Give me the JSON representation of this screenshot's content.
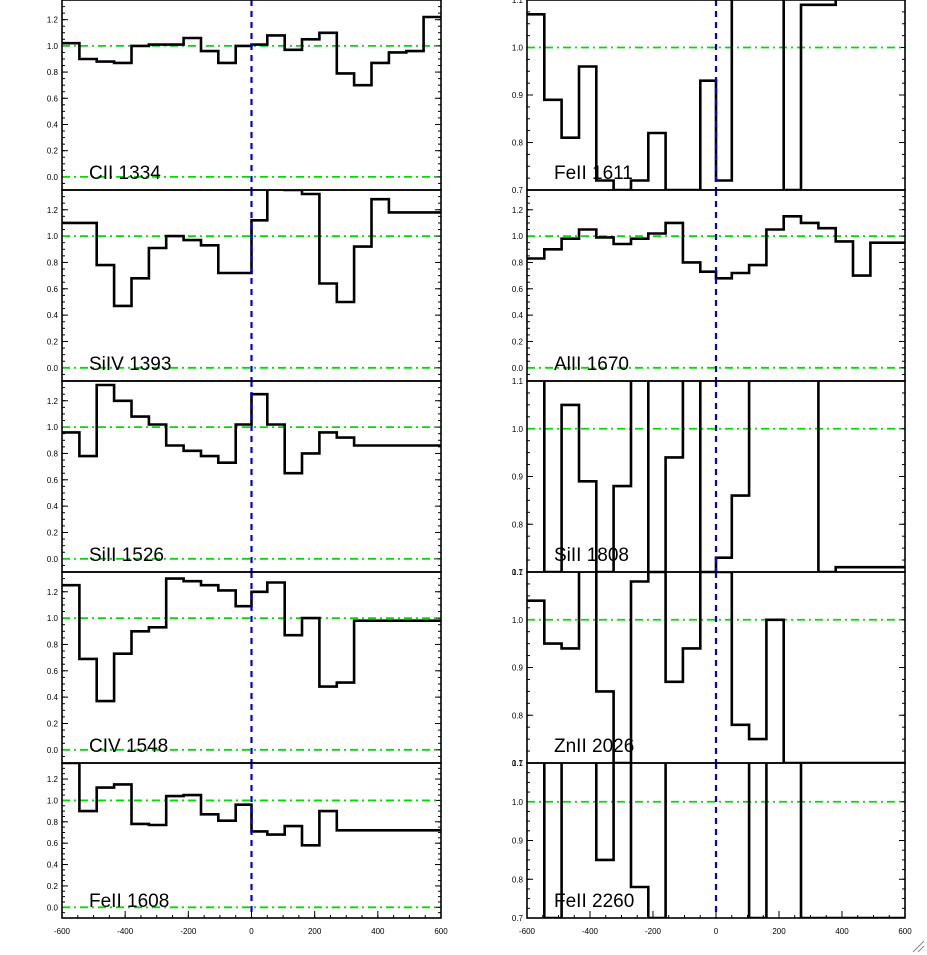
{
  "chart_data": {
    "type": "line",
    "layout": "2 columns x 5 rows, shared x axis per column",
    "xlim": [
      -600,
      600
    ],
    "xticks": [
      "-600",
      "-400",
      "-200",
      "0",
      "200",
      "400",
      "600"
    ],
    "bin_edges": [
      -600,
      -545,
      -490,
      -435,
      -380,
      -325,
      -270,
      -215,
      -160,
      -105,
      -50,
      0,
      50,
      105,
      160,
      215,
      270,
      325,
      380,
      435,
      490,
      545,
      600
    ],
    "reference_lines": {
      "continuum": 1.0,
      "zero_flux": 0.0,
      "velocity_zero": 0
    },
    "colors": {
      "histogram": "#000000",
      "reference": "#00dd00",
      "velocity_zero": "#0000dd"
    },
    "panels": [
      {
        "label": "CII 1334",
        "col": 0,
        "row": 0,
        "ylim": [
          -0.1,
          1.35
        ],
        "yticks": [
          "0.0",
          "0.2",
          "0.4",
          "0.6",
          "0.8",
          "1.0",
          "1.2"
        ],
        "values": [
          1.02,
          0.9,
          0.88,
          0.87,
          1.0,
          1.01,
          1.01,
          1.06,
          0.96,
          0.87,
          1.0,
          1.01,
          1.08,
          0.97,
          1.05,
          1.1,
          0.79,
          0.7,
          0.87,
          0.95,
          0.96,
          1.22
        ]
      },
      {
        "label": "FeII 1611",
        "col": 1,
        "row": 0,
        "ylim": [
          0.7,
          1.1
        ],
        "yticks": [
          "0.7",
          "0.8",
          "0.9",
          "1.0",
          "1.1"
        ],
        "values": [
          1.07,
          0.89,
          0.81,
          0.96,
          0.72,
          0.7,
          0.72,
          0.82,
          0.7,
          0.7,
          0.93,
          0.72,
          1.15,
          1.15,
          1.15,
          0.7,
          1.09,
          1.09,
          1.15,
          1.15,
          1.15,
          1.15
        ]
      },
      {
        "label": "SiIV 1393",
        "col": 0,
        "row": 1,
        "ylim": [
          -0.1,
          1.35
        ],
        "yticks": [
          "0.0",
          "0.2",
          "0.4",
          "0.6",
          "0.8",
          "1.0",
          "1.2"
        ],
        "values": [
          1.1,
          1.1,
          0.78,
          0.47,
          0.68,
          0.91,
          1.0,
          0.97,
          0.93,
          0.72,
          0.72,
          1.12,
          1.38,
          1.35,
          1.32,
          0.64,
          0.5,
          0.92,
          1.28,
          1.18,
          1.18,
          1.18
        ]
      },
      {
        "label": "AlII 1670",
        "col": 1,
        "row": 1,
        "ylim": [
          -0.1,
          1.35
        ],
        "yticks": [
          "0.0",
          "0.2",
          "0.4",
          "0.6",
          "0.8",
          "1.0",
          "1.2"
        ],
        "values": [
          0.83,
          0.9,
          0.98,
          1.05,
          0.99,
          0.94,
          0.98,
          1.02,
          1.1,
          0.8,
          0.73,
          0.68,
          0.72,
          0.78,
          1.05,
          1.15,
          1.1,
          1.06,
          0.96,
          0.7,
          0.95,
          0.95
        ]
      },
      {
        "label": "SiII 1526",
        "col": 0,
        "row": 2,
        "ylim": [
          -0.1,
          1.35
        ],
        "yticks": [
          "0.0",
          "0.2",
          "0.4",
          "0.6",
          "0.8",
          "1.0",
          "1.2"
        ],
        "values": [
          0.96,
          0.78,
          1.32,
          1.2,
          1.08,
          1.02,
          0.86,
          0.82,
          0.78,
          0.73,
          1.02,
          1.25,
          1.02,
          0.65,
          0.8,
          0.96,
          0.92,
          0.86,
          0.86,
          0.86,
          0.86,
          0.86
        ]
      },
      {
        "label": "SiII 1808",
        "col": 1,
        "row": 2,
        "ylim": [
          0.7,
          1.1
        ],
        "yticks": [
          "0.7",
          "0.8",
          "0.9",
          "1.0",
          "1.1"
        ],
        "values": [
          1.15,
          0.7,
          1.05,
          0.89,
          0.7,
          0.88,
          1.15,
          0.7,
          0.94,
          1.15,
          0.7,
          0.73,
          0.86,
          1.15,
          1.15,
          1.15,
          1.15,
          0.7,
          0.71,
          0.71,
          0.71,
          0.71
        ]
      },
      {
        "label": "CIV 1548",
        "col": 0,
        "row": 3,
        "ylim": [
          -0.1,
          1.35
        ],
        "yticks": [
          "0.0",
          "0.2",
          "0.4",
          "0.6",
          "0.8",
          "1.0",
          "1.2"
        ],
        "values": [
          1.25,
          0.69,
          0.37,
          0.73,
          0.9,
          0.93,
          1.3,
          1.28,
          1.25,
          1.21,
          1.09,
          1.2,
          1.27,
          0.87,
          1.0,
          0.48,
          0.51,
          0.98,
          0.98,
          0.98,
          0.98,
          0.98
        ]
      },
      {
        "label": "ZnII 2026",
        "col": 1,
        "row": 3,
        "ylim": [
          0.7,
          1.1
        ],
        "yticks": [
          "0.7",
          "0.8",
          "0.9",
          "1.0",
          "1.1"
        ],
        "values": [
          1.04,
          0.95,
          0.94,
          1.15,
          0.85,
          0.7,
          1.08,
          1.1,
          0.87,
          0.94,
          1.1,
          1.1,
          0.78,
          0.75,
          1.0,
          0.7,
          0.7,
          0.7,
          0.7,
          0.7,
          0.7,
          0.7
        ]
      },
      {
        "label": "FeII 1608",
        "col": 0,
        "row": 4,
        "ylim": [
          -0.1,
          1.35
        ],
        "yticks": [
          "0.0",
          "0.2",
          "0.4",
          "0.6",
          "0.8",
          "1.0",
          "1.2"
        ],
        "values": [
          1.35,
          0.9,
          1.12,
          1.15,
          0.78,
          0.77,
          1.04,
          1.05,
          0.87,
          0.81,
          0.96,
          0.71,
          0.68,
          0.76,
          0.58,
          0.9,
          0.72,
          0.72,
          0.72,
          0.72,
          0.72,
          0.72
        ]
      },
      {
        "label": "FeII 2260",
        "col": 1,
        "row": 4,
        "ylim": [
          0.7,
          1.1
        ],
        "yticks": [
          "0.7",
          "0.8",
          "0.9",
          "1.0",
          "1.1"
        ],
        "values": [
          1.15,
          0.7,
          1.15,
          1.15,
          0.85,
          1.15,
          0.78,
          0.7,
          1.15,
          1.15,
          1.15,
          1.15,
          1.15,
          0.7,
          1.15,
          1.15,
          0.7,
          0.7,
          0.7,
          0.7,
          0.7,
          0.7
        ]
      }
    ]
  }
}
